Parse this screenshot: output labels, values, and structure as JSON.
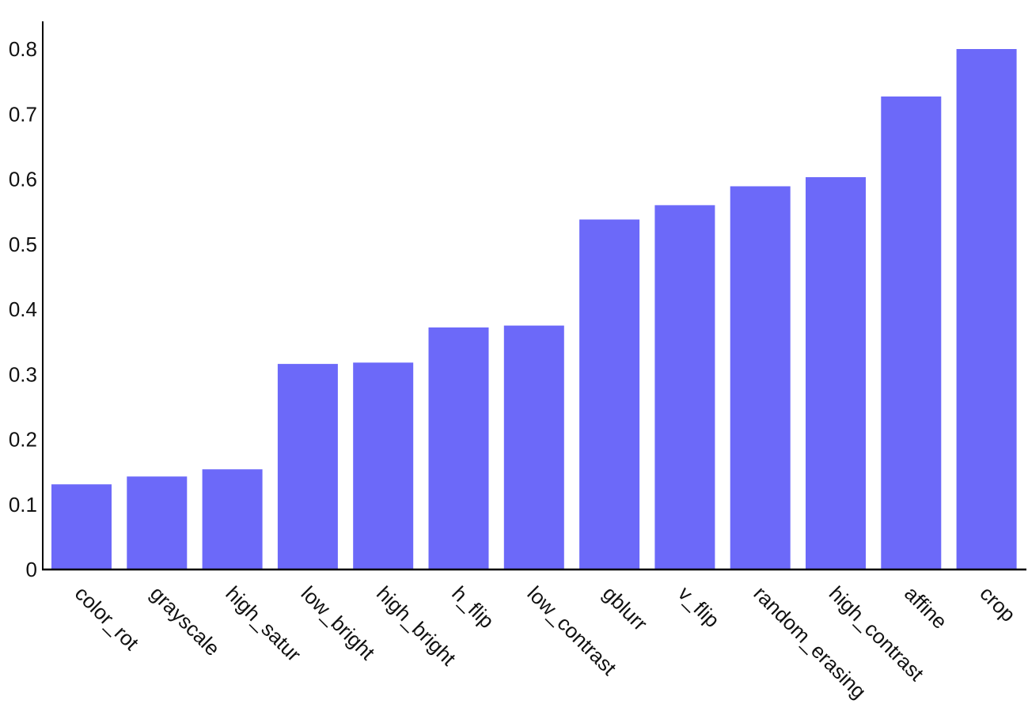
{
  "chart_data": {
    "type": "bar",
    "categories": [
      "color_rot",
      "grayscale",
      "high_satur",
      "low_bright",
      "high_bright",
      "h_flip",
      "low_contrast",
      "gblurr",
      "v_flip",
      "random_erasing",
      "high_contrast",
      "affine",
      "crop"
    ],
    "values": [
      0.131,
      0.143,
      0.154,
      0.316,
      0.318,
      0.372,
      0.375,
      0.538,
      0.56,
      0.589,
      0.603,
      0.727,
      0.8
    ],
    "yticks": [
      "0",
      "0.1",
      "0.2",
      "0.3",
      "0.4",
      "0.5",
      "0.6",
      "0.7",
      "0.8"
    ],
    "ylim": [
      0,
      0.84
    ],
    "bar_color": "#6c69f9",
    "title": "",
    "xlabel": "",
    "ylabel": "",
    "grid": false,
    "legend": false
  }
}
